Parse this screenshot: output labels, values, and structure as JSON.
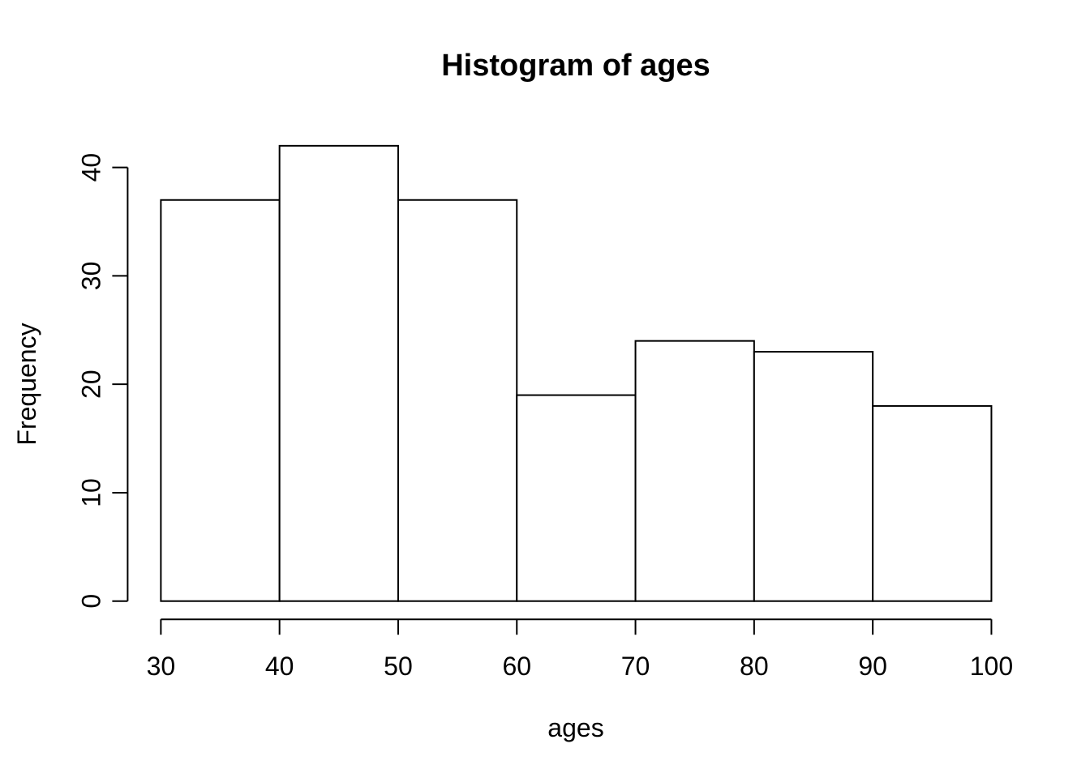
{
  "chart_data": {
    "type": "bar",
    "subtype": "histogram",
    "title": "Histogram of ages",
    "xlabel": "ages",
    "ylabel": "Frequency",
    "breaks": [
      30,
      40,
      50,
      60,
      70,
      80,
      90,
      100
    ],
    "counts": [
      37,
      42,
      37,
      19,
      24,
      23,
      18
    ],
    "x_tick_labels": [
      "30",
      "40",
      "50",
      "60",
      "70",
      "80",
      "90",
      "100"
    ],
    "x_tick_values": [
      30,
      40,
      50,
      60,
      70,
      80,
      90,
      100
    ],
    "y_tick_labels": [
      "0",
      "10",
      "20",
      "30",
      "40"
    ],
    "y_tick_values": [
      0,
      10,
      20,
      30,
      40
    ],
    "xlim": [
      30,
      100
    ],
    "ylim": [
      0,
      42
    ],
    "grid": false,
    "legend": null,
    "bar_fill": "#ffffff",
    "line_color": "#000000",
    "background": "#ffffff"
  }
}
